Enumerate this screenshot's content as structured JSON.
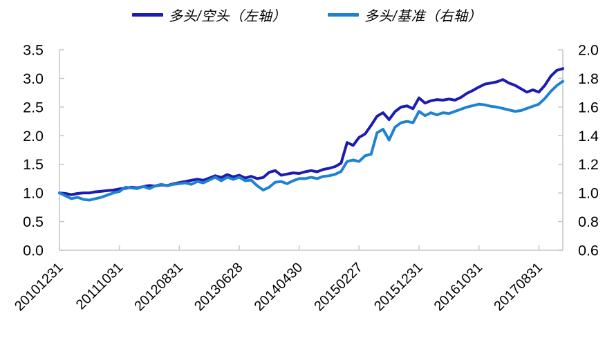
{
  "chart_data": {
    "type": "line",
    "title": "",
    "legend_position": "top",
    "text_color": "#000000",
    "axis_color": "#c9c9c9",
    "grid": false,
    "left_axis": {
      "min": 0.0,
      "max": 3.5,
      "ticks": [
        "0.0",
        "0.5",
        "1.0",
        "1.5",
        "2.0",
        "2.5",
        "3.0",
        "3.5"
      ]
    },
    "right_axis": {
      "min": 0.6,
      "max": 2.0,
      "ticks": [
        "0.6",
        "0.8",
        "1.0",
        "1.2",
        "1.4",
        "1.6",
        "1.8",
        "2.0"
      ]
    },
    "x_axis": {
      "tick_labels": [
        "20101231",
        "20111031",
        "20120831",
        "20130628",
        "20140430",
        "20150227",
        "20151231",
        "20161031",
        "20170831"
      ],
      "tick_indices": [
        0,
        10,
        20,
        30,
        40,
        50,
        60,
        70,
        80
      ],
      "note_points_are_monthly": "series sampled monthly from 20101231 to 20171229"
    },
    "series": [
      {
        "name": "多头/空头（左轴）",
        "axis": "left",
        "color": "#1c1cb0",
        "values": [
          1.0,
          0.99,
          0.97,
          0.99,
          1.0,
          1.0,
          1.02,
          1.03,
          1.04,
          1.05,
          1.07,
          1.08,
          1.1,
          1.09,
          1.11,
          1.13,
          1.12,
          1.14,
          1.13,
          1.16,
          1.18,
          1.2,
          1.22,
          1.24,
          1.22,
          1.26,
          1.3,
          1.27,
          1.32,
          1.28,
          1.31,
          1.26,
          1.29,
          1.25,
          1.27,
          1.36,
          1.39,
          1.31,
          1.33,
          1.35,
          1.34,
          1.37,
          1.39,
          1.37,
          1.41,
          1.43,
          1.46,
          1.52,
          1.88,
          1.83,
          1.97,
          2.03,
          2.18,
          2.34,
          2.4,
          2.28,
          2.42,
          2.5,
          2.52,
          2.47,
          2.66,
          2.57,
          2.61,
          2.63,
          2.62,
          2.64,
          2.62,
          2.67,
          2.74,
          2.79,
          2.85,
          2.9,
          2.92,
          2.94,
          2.98,
          2.92,
          2.88,
          2.82,
          2.76,
          2.8,
          2.76,
          2.88,
          3.04,
          3.14,
          3.17
        ]
      },
      {
        "name": "多头/基准（右轴）",
        "axis": "right",
        "color": "#1e82d2",
        "values": [
          1.0,
          0.98,
          0.96,
          0.97,
          0.955,
          0.95,
          0.96,
          0.97,
          0.985,
          1.0,
          1.01,
          1.04,
          1.035,
          1.03,
          1.045,
          1.03,
          1.05,
          1.06,
          1.05,
          1.06,
          1.065,
          1.07,
          1.06,
          1.08,
          1.07,
          1.09,
          1.11,
          1.085,
          1.11,
          1.095,
          1.11,
          1.085,
          1.09,
          1.05,
          1.02,
          1.04,
          1.075,
          1.08,
          1.065,
          1.085,
          1.1,
          1.1,
          1.11,
          1.1,
          1.115,
          1.12,
          1.13,
          1.15,
          1.22,
          1.23,
          1.22,
          1.26,
          1.27,
          1.42,
          1.445,
          1.37,
          1.46,
          1.49,
          1.5,
          1.49,
          1.57,
          1.54,
          1.56,
          1.545,
          1.56,
          1.555,
          1.57,
          1.585,
          1.6,
          1.61,
          1.62,
          1.615,
          1.605,
          1.6,
          1.59,
          1.58,
          1.57,
          1.575,
          1.59,
          1.605,
          1.62,
          1.66,
          1.71,
          1.75,
          1.78
        ]
      }
    ]
  }
}
